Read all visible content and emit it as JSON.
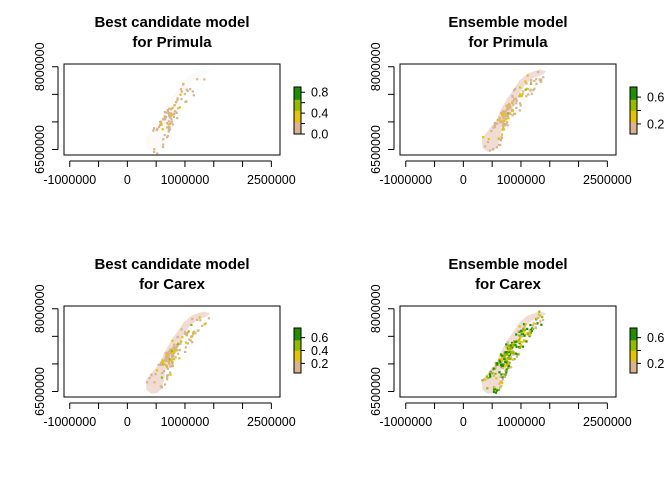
{
  "chart_data": [
    {
      "type": "heatmap",
      "title_line1": "Best candidate model",
      "title_line2": "for Primula",
      "x_ticks": [
        "-1000000",
        "0",
        "1000000",
        "2500000"
      ],
      "x_tick_values": [
        -1000000,
        0,
        1000000,
        2500000
      ],
      "y_ticks": [
        "6500000",
        "8000000"
      ],
      "y_tick_values": [
        6500000,
        8000000
      ],
      "xlim": [
        -1100000,
        2650000
      ],
      "ylim": [
        6400000,
        8050000
      ],
      "legend_ticks": [
        "0.0",
        "0.2",
        "0.4",
        "0.6",
        "0.8"
      ],
      "legend_labels": [
        "0.0",
        "0.4",
        "0.8"
      ],
      "legend_range": [
        0.0,
        0.9
      ],
      "colors": [
        "#f2f2f2",
        "#d9b38c",
        "#e6c200",
        "#8fbc00",
        "#1f8f00"
      ],
      "grid": false,
      "legend": "right",
      "intensity": 0.12
    },
    {
      "type": "heatmap",
      "title_line1": "Ensemble model",
      "title_line2": "for Primula",
      "x_ticks": [
        "-1000000",
        "0",
        "1000000",
        "2500000"
      ],
      "x_tick_values": [
        -1000000,
        0,
        1000000,
        2500000
      ],
      "y_ticks": [
        "6500000",
        "8000000"
      ],
      "y_tick_values": [
        6500000,
        8000000
      ],
      "xlim": [
        -1100000,
        2650000
      ],
      "ylim": [
        6400000,
        8050000
      ],
      "legend_ticks": [
        "0.2",
        "0.4",
        "0.6"
      ],
      "legend_labels": [
        "0.2",
        "0.6"
      ],
      "legend_range": [
        0.05,
        0.75
      ],
      "colors": [
        "#f2f2f2",
        "#d9b38c",
        "#e6c200",
        "#8fbc00",
        "#1f8f00"
      ],
      "grid": false,
      "legend": "right",
      "intensity": 0.3
    },
    {
      "type": "heatmap",
      "title_line1": "Best candidate model",
      "title_line2": "for Carex",
      "x_ticks": [
        "-1000000",
        "0",
        "1000000",
        "2500000"
      ],
      "x_tick_values": [
        -1000000,
        0,
        1000000,
        2500000
      ],
      "y_ticks": [
        "6500000",
        "8000000"
      ],
      "y_tick_values": [
        6500000,
        8000000
      ],
      "xlim": [
        -1100000,
        2650000
      ],
      "ylim": [
        6400000,
        8050000
      ],
      "legend_ticks": [
        "0.2",
        "0.4",
        "0.6"
      ],
      "legend_labels": [
        "0.2",
        "0.4",
        "0.6"
      ],
      "legend_range": [
        0.05,
        0.75
      ],
      "colors": [
        "#f2f2f2",
        "#d9b38c",
        "#e6c200",
        "#8fbc00",
        "#1f8f00"
      ],
      "grid": false,
      "legend": "right",
      "intensity": 0.35
    },
    {
      "type": "heatmap",
      "title_line1": "Ensemble model",
      "title_line2": "for Carex",
      "x_ticks": [
        "-1000000",
        "0",
        "1000000",
        "2500000"
      ],
      "x_tick_values": [
        -1000000,
        0,
        1000000,
        2500000
      ],
      "y_ticks": [
        "6500000",
        "8000000"
      ],
      "y_tick_values": [
        6500000,
        8000000
      ],
      "xlim": [
        -1100000,
        2650000
      ],
      "ylim": [
        6400000,
        8050000
      ],
      "legend_ticks": [
        "0.2",
        "0.4",
        "0.6"
      ],
      "legend_labels": [
        "0.2",
        "0.6"
      ],
      "legend_range": [
        0.05,
        0.75
      ],
      "colors": [
        "#f2f2f2",
        "#d9b38c",
        "#e6c200",
        "#8fbc00",
        "#1f8f00"
      ],
      "grid": false,
      "legend": "right",
      "intensity": 0.75
    }
  ]
}
